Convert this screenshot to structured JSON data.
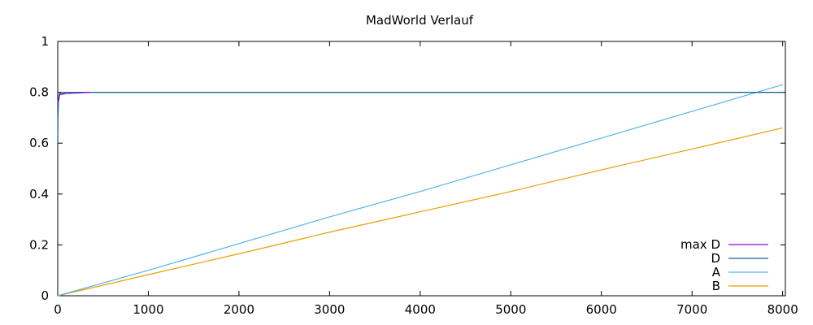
{
  "chart_data": {
    "type": "line",
    "title": "MadWorld Verlauf",
    "xlabel": "",
    "ylabel": "",
    "xlim": [
      0,
      8000
    ],
    "ylim": [
      0,
      1
    ],
    "x_ticks": [
      0,
      1000,
      2000,
      3000,
      4000,
      5000,
      6000,
      7000,
      8000
    ],
    "y_ticks": [
      0,
      0.2,
      0.4,
      0.6,
      0.8,
      1
    ],
    "x_tick_labels": [
      "0",
      "1000",
      "2000",
      "3000",
      "4000",
      "5000",
      "6000",
      "7000",
      "8000"
    ],
    "y_tick_labels": [
      "0",
      "0.2",
      "0.4",
      "0.6",
      "0.8",
      "1"
    ],
    "grid": false,
    "legend_position": "bottom-right",
    "series": [
      {
        "name": "max D",
        "color": "#9400d3",
        "x": [
          0,
          20,
          50,
          100,
          200,
          300,
          360
        ],
        "y": [
          0.76,
          0.795,
          0.792,
          0.796,
          0.797,
          0.799,
          0.8
        ]
      },
      {
        "name": "D",
        "color": "#1f5f9f",
        "x": [
          0,
          5,
          12,
          25,
          50,
          100,
          200,
          300,
          360,
          8000
        ],
        "y": [
          0.6,
          0.76,
          0.78,
          0.79,
          0.795,
          0.796,
          0.798,
          0.799,
          0.8,
          0.8
        ]
      },
      {
        "name": "",
        "color": "#009e73",
        "x": [
          0,
          3,
          8,
          20,
          40,
          8000
        ],
        "y": [
          0.6,
          0.7,
          0.76,
          0.79,
          0.8,
          0.8
        ]
      },
      {
        "name": "A",
        "color": "#56b4e9",
        "x": [
          0,
          1000,
          2000,
          3000,
          4000,
          5000,
          6000,
          7000,
          8000
        ],
        "y": [
          0,
          0.1,
          0.205,
          0.31,
          0.41,
          0.515,
          0.62,
          0.725,
          0.83
        ]
      },
      {
        "name": "B",
        "color": "#e69f00",
        "x": [
          0,
          1000,
          2000,
          3000,
          4000,
          5000,
          6000,
          7000,
          8000
        ],
        "y": [
          0,
          0.083,
          0.165,
          0.25,
          0.33,
          0.41,
          0.495,
          0.577,
          0.66
        ]
      }
    ]
  }
}
